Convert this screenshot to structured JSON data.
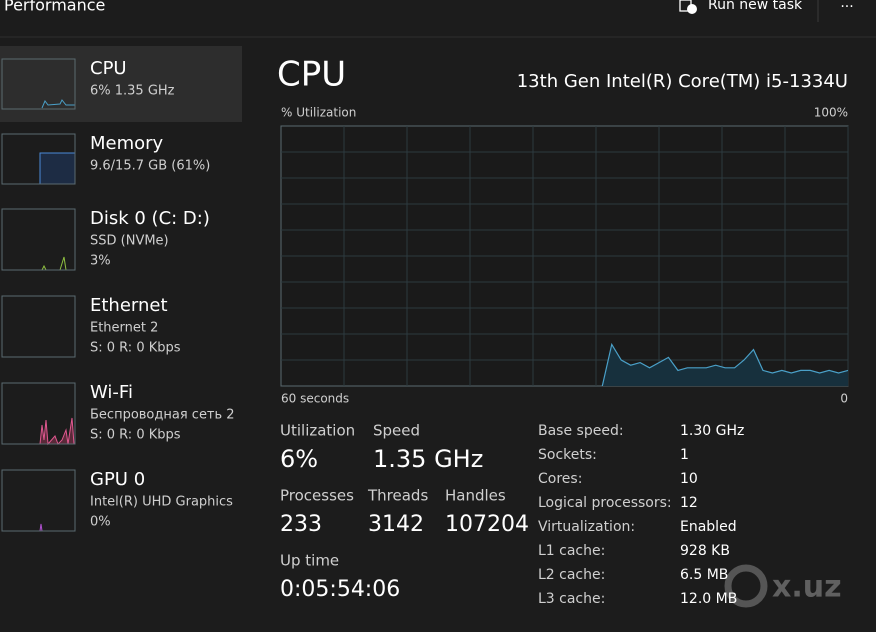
{
  "header": {
    "title": "Performance",
    "run_new_task": "Run new task",
    "more": "..."
  },
  "sidebar": [
    {
      "title": "CPU",
      "lines": [
        "6%  1.35 GHz"
      ]
    },
    {
      "title": "Memory",
      "lines": [
        "9.6/15.7 GB (61%)"
      ]
    },
    {
      "title": "Disk 0 (C: D:)",
      "lines": [
        "SSD (NVMe)",
        "3%"
      ]
    },
    {
      "title": "Ethernet",
      "lines": [
        "Ethernet 2",
        "S: 0 R: 0 Kbps"
      ]
    },
    {
      "title": "Wi-Fi",
      "lines": [
        "Беспроводная сеть 2",
        "S: 0 R: 0 Kbps"
      ]
    },
    {
      "title": "GPU 0",
      "lines": [
        "Intel(R) UHD Graphics",
        "0%"
      ]
    }
  ],
  "main": {
    "title": "CPU",
    "model": "13th Gen Intel(R) Core(TM) i5-1334U",
    "graph": {
      "y_label": "% Utilization",
      "y_max_label": "100%",
      "x_label": "60 seconds",
      "x_end_label": "0",
      "ylim": [
        0,
        100
      ],
      "values": [
        null,
        null,
        null,
        null,
        null,
        null,
        null,
        null,
        null,
        null,
        null,
        null,
        null,
        null,
        null,
        null,
        null,
        null,
        null,
        null,
        null,
        null,
        null,
        null,
        null,
        null,
        null,
        null,
        null,
        null,
        null,
        null,
        null,
        null,
        0,
        16,
        10,
        8,
        9,
        7,
        9,
        11,
        6,
        7,
        7,
        7,
        8,
        7,
        7,
        10,
        14,
        6,
        5,
        6,
        5,
        6,
        6,
        5,
        6,
        5,
        6
      ]
    },
    "stats": [
      {
        "label": "Utilization",
        "value": "6%"
      },
      {
        "label": "Speed",
        "value": "1.35 GHz"
      },
      {
        "label": "Processes",
        "value": "233"
      },
      {
        "label": "Threads",
        "value": "3142"
      },
      {
        "label": "Handles",
        "value": "107204"
      },
      {
        "label": "Up time",
        "value": "0:05:54:06"
      }
    ],
    "details": [
      {
        "label": "Base speed:",
        "value": "1.30 GHz"
      },
      {
        "label": "Sockets:",
        "value": "1"
      },
      {
        "label": "Cores:",
        "value": "10"
      },
      {
        "label": "Logical processors:",
        "value": "12"
      },
      {
        "label": "Virtualization:",
        "value": "Enabled"
      },
      {
        "label": "L1 cache:",
        "value": "928 KB"
      },
      {
        "label": "L2 cache:",
        "value": "6.5 MB"
      },
      {
        "label": "L3 cache:",
        "value": "12.0 MB"
      }
    ]
  },
  "watermark": "x.uz"
}
